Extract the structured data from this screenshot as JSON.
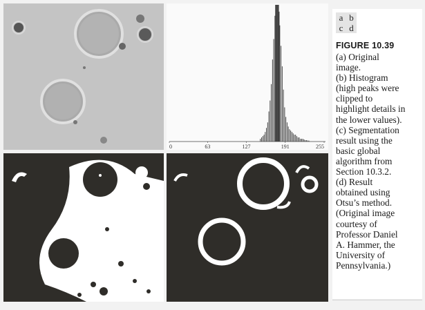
{
  "panel_letters": [
    "a",
    "b",
    "c",
    "d"
  ],
  "figure_label": "FIGURE 10.39",
  "caption_lines": [
    "(a) Original",
    "image.",
    "(b) Histogram",
    "(high peaks were",
    "clipped to",
    "highlight details in",
    "the lower values).",
    "(c) Segmentation",
    "result using the",
    "basic global",
    "algorithm from",
    "Section 10.3.2.",
    "(d) Result",
    "obtained using",
    "Otsu’s method.",
    "(Original image",
    "courtesy of",
    "Professor Daniel",
    "A. Hammer, the",
    "University of",
    "Pennsylvania.)"
  ],
  "colors": {
    "original_background": "#c4c4c4",
    "segmentation_black": "#2f2d29",
    "segmentation_white": "#ffffff",
    "histogram_bars": "#333333"
  },
  "chart_data": {
    "type": "bar",
    "xlim": [
      0,
      255
    ],
    "x_tick_labels": [
      "0",
      "63",
      "127",
      "191",
      "255"
    ],
    "x_ticks": [
      0,
      63,
      127,
      191,
      255
    ],
    "ylim": [
      0,
      1
    ],
    "peaks_clipped": true,
    "bins": [
      [
        150,
        0.02
      ],
      [
        152,
        0.03
      ],
      [
        154,
        0.04
      ],
      [
        156,
        0.05
      ],
      [
        158,
        0.07
      ],
      [
        160,
        0.1
      ],
      [
        162,
        0.14
      ],
      [
        164,
        0.22
      ],
      [
        166,
        0.3
      ],
      [
        168,
        0.42
      ],
      [
        170,
        0.6
      ],
      [
        172,
        0.75
      ],
      [
        174,
        0.92
      ],
      [
        175,
        1.0
      ],
      [
        176,
        1.0
      ],
      [
        177,
        1.0
      ],
      [
        178,
        1.0
      ],
      [
        179,
        1.0
      ],
      [
        180,
        1.0
      ],
      [
        181,
        0.95
      ],
      [
        182,
        0.85
      ],
      [
        184,
        0.7
      ],
      [
        186,
        0.55
      ],
      [
        188,
        0.38
      ],
      [
        190,
        0.25
      ],
      [
        192,
        0.18
      ],
      [
        194,
        0.14
      ],
      [
        196,
        0.11
      ],
      [
        198,
        0.09
      ],
      [
        200,
        0.08
      ],
      [
        202,
        0.07
      ],
      [
        204,
        0.06
      ],
      [
        206,
        0.05
      ],
      [
        208,
        0.05
      ],
      [
        210,
        0.04
      ],
      [
        212,
        0.03
      ],
      [
        214,
        0.03
      ],
      [
        216,
        0.02
      ],
      [
        218,
        0.02
      ],
      [
        220,
        0.02
      ],
      [
        222,
        0.015
      ],
      [
        224,
        0.01
      ],
      [
        226,
        0.01
      ],
      [
        228,
        0.008
      ],
      [
        230,
        0.006
      ]
    ]
  }
}
